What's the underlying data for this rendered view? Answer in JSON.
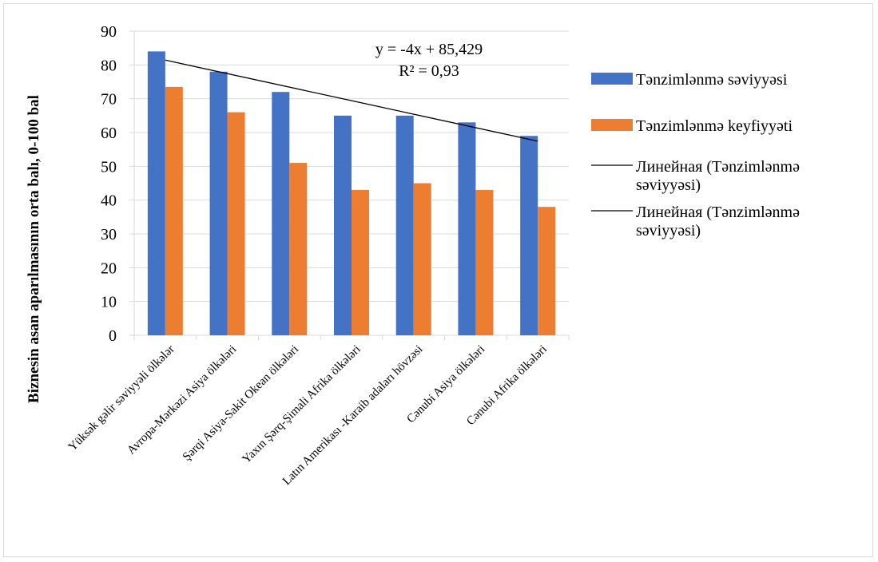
{
  "chart_data": {
    "type": "bar",
    "ylabel": "Biznesin asan aparılmasının orta balı, 0-100 bal",
    "ylim": [
      0,
      90
    ],
    "ytick_step": 10,
    "yticks": [
      "0",
      "10",
      "20",
      "30",
      "40",
      "50",
      "60",
      "70",
      "80",
      "90"
    ],
    "grid": true,
    "legend_position": "right",
    "categories": [
      "Yüksək gəlir səviyyəli ölkələr",
      "Avropa-Mərkəzi Asiya ölkələri",
      "Şərqi Asiya-Sakit Okean ölkələri",
      "Yaxın Şərq-Şimali Afrika ölkələri",
      "Latın Amerikası -Karaib adaları hövzəsi",
      "Cənubi Asiya ölkələri",
      "Cənubi Afrika ölkələri"
    ],
    "series": [
      {
        "name": "Tənzimlənmə səviyyəsi",
        "color": "#4472c4",
        "values": [
          84,
          78,
          72,
          65,
          65,
          63,
          59
        ]
      },
      {
        "name": "Tənzimlənmə keyfiyyəti",
        "color": "#ed7d31",
        "values": [
          73.5,
          66,
          51,
          43,
          45,
          43,
          38
        ]
      }
    ],
    "trendlines": [
      {
        "name": "Линейная (Tənzimlənmə səviyyəsi)",
        "slope": -4,
        "intercept": 85.429,
        "color": "#000000"
      },
      {
        "name": "Линейная (Tənzimlənmə səviyyəsi)",
        "slope": -4,
        "intercept": 85.429,
        "color": "#000000"
      }
    ],
    "equation": "y = -4x + 85,429",
    "r_squared": "R² = 0,93"
  }
}
